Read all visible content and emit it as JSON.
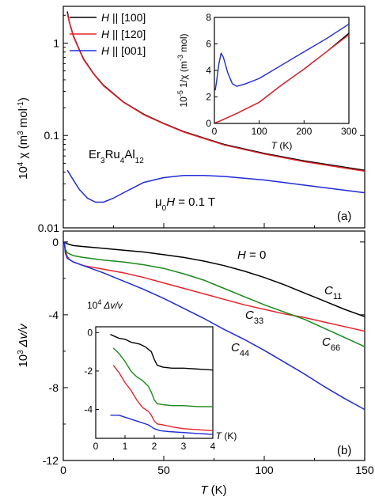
{
  "chart_data": [
    {
      "type": "line",
      "panel_label": "(a)",
      "ylabel_html": [
        "10",
        "4",
        " χ (m",
        "3",
        " mol",
        "-1",
        ")"
      ],
      "yscale": "log",
      "ylim": [
        0.01,
        2.5
      ],
      "xlim": [
        0,
        150
      ],
      "yticks": [
        {
          "v": 0.01,
          "t": "0.01"
        },
        {
          "v": 0.1,
          "t": "0.1"
        },
        {
          "v": 1,
          "t": "1"
        }
      ],
      "compound": [
        "Er",
        "3",
        "Ru",
        "4",
        "Al",
        "12"
      ],
      "field_annotation": [
        "μ",
        "0",
        "H",
        " = 0.1 T"
      ],
      "legend": [
        {
          "name_pre": "H",
          "name_post": " || [100]",
          "color": "#000000"
        },
        {
          "name_pre": "H",
          "name_post": " || [120]",
          "color": "#e8232a"
        },
        {
          "name_pre": "H",
          "name_post": " || [001]",
          "color": "#1f2bd6"
        }
      ],
      "series": [
        {
          "name": "H || [100]",
          "color": "#000000",
          "x": [
            2,
            3,
            5,
            8,
            10,
            15,
            20,
            30,
            40,
            50,
            60,
            80,
            100,
            120,
            150
          ],
          "y": [
            2.2,
            1.7,
            1.2,
            0.85,
            0.68,
            0.47,
            0.35,
            0.23,
            0.17,
            0.135,
            0.11,
            0.08,
            0.064,
            0.053,
            0.042
          ]
        },
        {
          "name": "H || [120]",
          "color": "#e8232a",
          "x": [
            2,
            3,
            5,
            8,
            10,
            15,
            20,
            30,
            40,
            50,
            60,
            80,
            100,
            120,
            150
          ],
          "y": [
            2.1,
            1.68,
            1.18,
            0.84,
            0.67,
            0.465,
            0.345,
            0.228,
            0.168,
            0.134,
            0.109,
            0.079,
            0.063,
            0.052,
            0.041
          ]
        },
        {
          "name": "H || [001]",
          "color": "#1f2bd6",
          "x": [
            2,
            5,
            8,
            12,
            16,
            20,
            25,
            30,
            40,
            50,
            60,
            70,
            80,
            100,
            120,
            150
          ],
          "y": [
            0.042,
            0.033,
            0.026,
            0.021,
            0.019,
            0.019,
            0.021,
            0.024,
            0.031,
            0.035,
            0.037,
            0.037,
            0.036,
            0.033,
            0.029,
            0.024
          ]
        }
      ],
      "inset": {
        "xlabel_pre": "T",
        "xlabel_post": " (K)",
        "ylabel_html": [
          "10",
          "-5",
          " 1/χ (m",
          "-3",
          " mol)"
        ],
        "xlim": [
          0,
          300
        ],
        "ylim": [
          0,
          8
        ],
        "xticks": [
          0,
          100,
          200,
          300
        ],
        "yticks": [
          0,
          2,
          4,
          6,
          8
        ],
        "series": [
          {
            "color": "#000000",
            "x": [
              2,
              10,
              20,
              50,
              100,
              150,
              200,
              250,
              300
            ],
            "y": [
              0.05,
              0.15,
              0.3,
              0.75,
              1.6,
              2.9,
              4.1,
              5.4,
              6.8
            ]
          },
          {
            "color": "#e8232a",
            "x": [
              2,
              10,
              20,
              50,
              100,
              150,
              200,
              250,
              300
            ],
            "y": [
              0.05,
              0.15,
              0.3,
              0.75,
              1.6,
              2.9,
              4.1,
              5.4,
              6.7
            ]
          },
          {
            "color": "#1f2bd6",
            "x": [
              2,
              5,
              10,
              15,
              20,
              30,
              40,
              50,
              70,
              100,
              150,
              200,
              250,
              300
            ],
            "y": [
              2.5,
              3.2,
              4.5,
              5.3,
              5.0,
              3.8,
              3.0,
              2.8,
              3.0,
              3.4,
              4.4,
              5.4,
              6.4,
              7.5
            ]
          }
        ]
      }
    },
    {
      "type": "line",
      "panel_label": "(b)",
      "ylabel_html": [
        "10",
        "3",
        " Δv/v"
      ],
      "xlabel_pre": "T",
      "xlabel_post": " (K)",
      "xlim": [
        0,
        150
      ],
      "ylim": [
        -12,
        0.6
      ],
      "xticks": [
        0,
        50,
        100,
        150
      ],
      "xticklabels": [
        "0",
        "50",
        "100",
        "150"
      ],
      "yticks": [
        0,
        -4,
        -8,
        -12
      ],
      "field_annotation": [
        "H",
        " = 0"
      ],
      "curve_labels": [
        {
          "main": "C",
          "sub": "11",
          "color": "#000000"
        },
        {
          "main": "C",
          "sub": "33",
          "color": "#e8232a"
        },
        {
          "main": "C",
          "sub": "66",
          "color": "#1a8a1a"
        },
        {
          "main": "C",
          "sub": "44",
          "color": "#1f2bd6"
        }
      ],
      "series": [
        {
          "name": "C11",
          "color": "#000000",
          "x": [
            0.5,
            2,
            5,
            10,
            20,
            30,
            40,
            50,
            60,
            70,
            80,
            90,
            100,
            110,
            120,
            130,
            140,
            150
          ],
          "y": [
            0,
            -0.1,
            -0.2,
            -0.25,
            -0.35,
            -0.45,
            -0.55,
            -0.7,
            -0.85,
            -1.05,
            -1.3,
            -1.6,
            -1.95,
            -2.35,
            -2.8,
            -3.25,
            -3.7,
            -4.1
          ]
        },
        {
          "name": "C33",
          "color": "#e8232a",
          "x": [
            0.5,
            1,
            2,
            3,
            5,
            10,
            20,
            30,
            40,
            50,
            60,
            70,
            80,
            90,
            100,
            110,
            120,
            130,
            140,
            150
          ],
          "y": [
            0,
            -0.5,
            -0.8,
            -0.95,
            -1.1,
            -1.3,
            -1.5,
            -1.7,
            -1.95,
            -2.25,
            -2.55,
            -2.85,
            -3.15,
            -3.45,
            -3.7,
            -3.95,
            -4.15,
            -4.4,
            -4.65,
            -4.9
          ]
        },
        {
          "name": "C66",
          "color": "#1a8a1a",
          "x": [
            0.5,
            1,
            2,
            5,
            10,
            20,
            30,
            40,
            50,
            60,
            70,
            80,
            90,
            100,
            110,
            120,
            130,
            140,
            150
          ],
          "y": [
            0,
            -0.4,
            -0.6,
            -0.75,
            -0.85,
            -1.0,
            -1.1,
            -1.25,
            -1.45,
            -1.75,
            -2.1,
            -2.55,
            -3.0,
            -3.45,
            -3.85,
            -4.25,
            -4.75,
            -5.25,
            -5.75
          ]
        },
        {
          "name": "C44",
          "color": "#1f2bd6",
          "x": [
            0.5,
            1,
            2,
            5,
            10,
            20,
            30,
            40,
            50,
            60,
            70,
            80,
            90,
            100,
            110,
            120,
            130,
            140,
            150
          ],
          "y": [
            0,
            -0.6,
            -0.9,
            -1.1,
            -1.3,
            -1.7,
            -2.15,
            -2.6,
            -3.1,
            -3.65,
            -4.2,
            -4.8,
            -5.35,
            -5.95,
            -6.6,
            -7.25,
            -7.95,
            -8.6,
            -9.2
          ]
        }
      ],
      "inset": {
        "title_html": [
          "10",
          "4",
          " Δv/v"
        ],
        "xlabel_pre": "T",
        "xlabel_post": " (K)",
        "xlim": [
          0,
          4
        ],
        "ylim": [
          -5.5,
          0.3
        ],
        "xticks": [
          0,
          1,
          2,
          3,
          4
        ],
        "yticks": [
          0,
          -2,
          -4
        ],
        "series": [
          {
            "color": "#000000",
            "x": [
              0.5,
              0.8,
              1.0,
              1.2,
              1.5,
              1.7,
              1.9,
              2.0,
              2.1,
              2.3,
              2.6,
              3.0,
              3.5,
              4.0
            ],
            "y": [
              -0.1,
              -0.3,
              -0.35,
              -0.5,
              -0.6,
              -0.75,
              -1.0,
              -1.4,
              -1.7,
              -1.8,
              -1.85,
              -1.85,
              -1.9,
              -1.95
            ]
          },
          {
            "color": "#1a8a1a",
            "x": [
              0.6,
              0.8,
              1.0,
              1.2,
              1.4,
              1.6,
              1.8,
              1.9,
              2.0,
              2.1,
              2.3,
              2.6,
              3.0,
              3.5,
              4.0
            ],
            "y": [
              -0.8,
              -1.1,
              -1.5,
              -2.0,
              -2.3,
              -2.5,
              -2.8,
              -3.1,
              -3.5,
              -3.7,
              -3.75,
              -3.8,
              -3.8,
              -3.85,
              -3.85
            ]
          },
          {
            "color": "#e8232a",
            "x": [
              0.6,
              0.8,
              1.0,
              1.2,
              1.4,
              1.6,
              1.8,
              1.9,
              2.0,
              2.1,
              2.3,
              2.6,
              3.0,
              3.5,
              4.0
            ],
            "y": [
              -1.7,
              -2.1,
              -2.6,
              -3.0,
              -3.5,
              -3.9,
              -4.1,
              -4.3,
              -4.6,
              -4.75,
              -4.8,
              -4.9,
              -5.0,
              -5.05,
              -5.1
            ]
          },
          {
            "color": "#1f2bd6",
            "x": [
              0.5,
              0.8,
              1.0,
              1.2,
              1.5,
              1.8,
              2.0,
              2.2,
              2.5,
              3.0,
              3.5,
              4.0
            ],
            "y": [
              -4.3,
              -4.3,
              -4.4,
              -4.5,
              -4.65,
              -4.8,
              -5.0,
              -5.1,
              -5.15,
              -5.2,
              -5.25,
              -5.3
            ]
          }
        ]
      }
    }
  ]
}
